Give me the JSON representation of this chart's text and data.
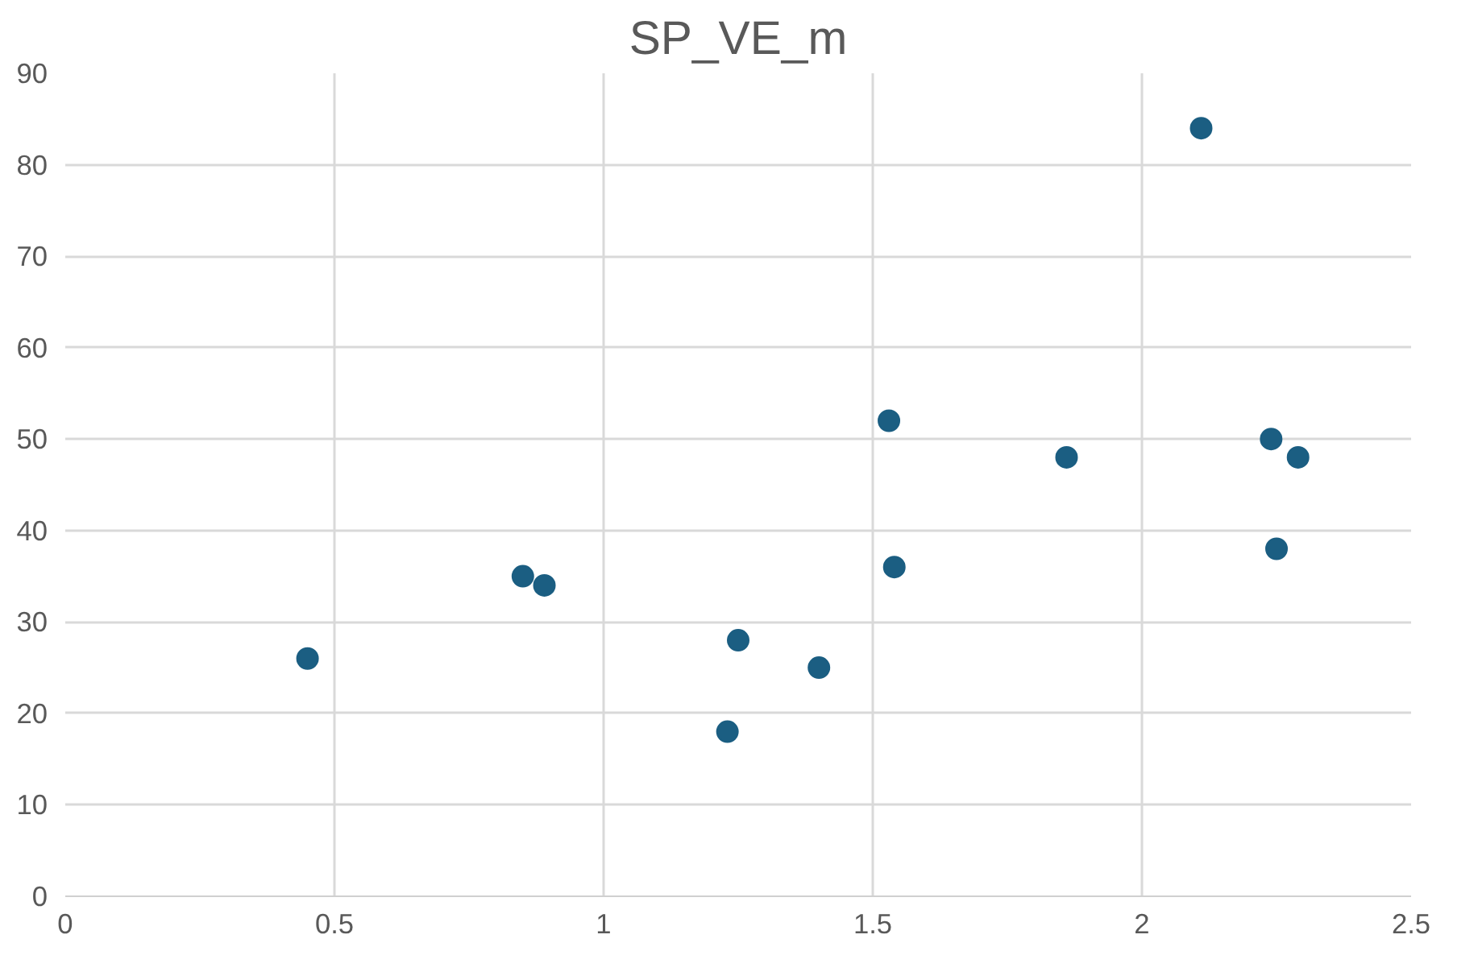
{
  "chart_data": {
    "type": "scatter",
    "title": "SP_VE_m",
    "x": [
      0.45,
      0.85,
      0.89,
      1.23,
      1.25,
      1.4,
      1.53,
      1.54,
      1.86,
      2.11,
      2.24,
      2.29,
      2.25
    ],
    "series": [
      {
        "color": "#1b5e82",
        "values": [
          26,
          35,
          34,
          18,
          28,
          25,
          52,
          36,
          48,
          84,
          50,
          48,
          38
        ]
      }
    ],
    "xlim": [
      0,
      2.5
    ],
    "xticks": [
      0,
      0.5,
      1,
      1.5,
      2,
      2.5
    ],
    "ylim": [
      0,
      90
    ],
    "yticks": [
      0,
      10,
      20,
      30,
      40,
      50,
      60,
      70,
      80,
      90
    ],
    "grid": true,
    "marker": "circle"
  }
}
